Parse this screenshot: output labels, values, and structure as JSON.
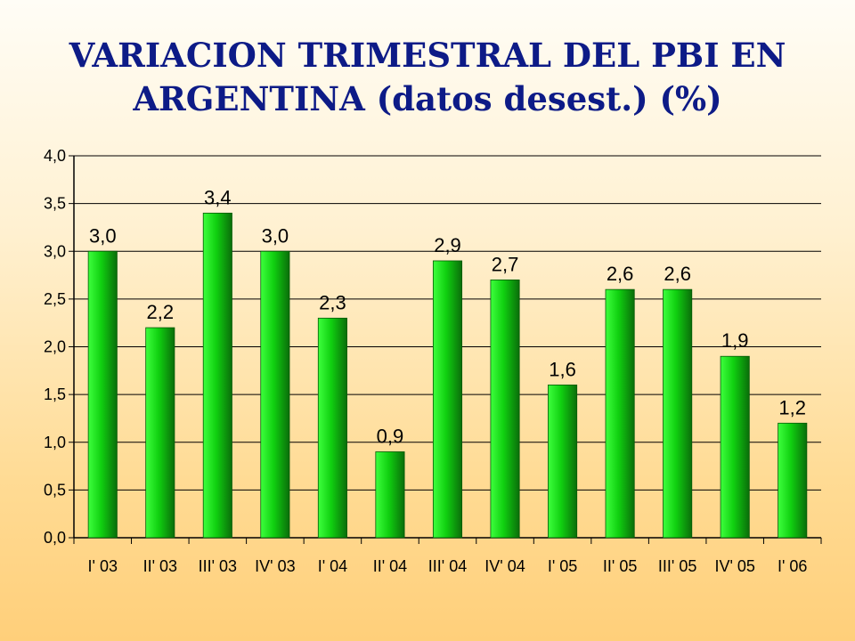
{
  "title": {
    "line1": "VARIACION TRIMESTRAL DEL PBI EN",
    "line2": "ARGENTINA (datos desest.) (%)"
  },
  "chart_data": {
    "type": "bar",
    "categories": [
      "I' 03",
      "II' 03",
      "III' 03",
      "IV' 03",
      "I' 04",
      "II' 04",
      "III' 04",
      "IV' 04",
      "I' 05",
      "II' 05",
      "III' 05",
      "IV' 05",
      "I' 06"
    ],
    "values": [
      3.0,
      2.2,
      3.4,
      3.0,
      2.3,
      0.9,
      2.9,
      2.7,
      1.6,
      2.6,
      2.6,
      1.9,
      1.2
    ],
    "value_labels": [
      "3,0",
      "2,2",
      "3,4",
      "3,0",
      "2,3",
      "0,9",
      "2,9",
      "2,7",
      "1,6",
      "2,6",
      "2,6",
      "1,9",
      "1,2"
    ],
    "y_ticks": [
      0.0,
      0.5,
      1.0,
      1.5,
      2.0,
      2.5,
      3.0,
      3.5,
      4.0
    ],
    "y_tick_labels": [
      "0,0",
      "0,5",
      "1,0",
      "1,5",
      "2,0",
      "2,5",
      "3,0",
      "3,5",
      "4,0"
    ],
    "ylim": [
      0,
      4.0
    ],
    "grid": true,
    "legend": "none",
    "colors": {
      "bar_light": "#3dff3d",
      "bar_mid": "#10d010",
      "bar_dark": "#0a6d0a",
      "grid": "#000000"
    }
  }
}
